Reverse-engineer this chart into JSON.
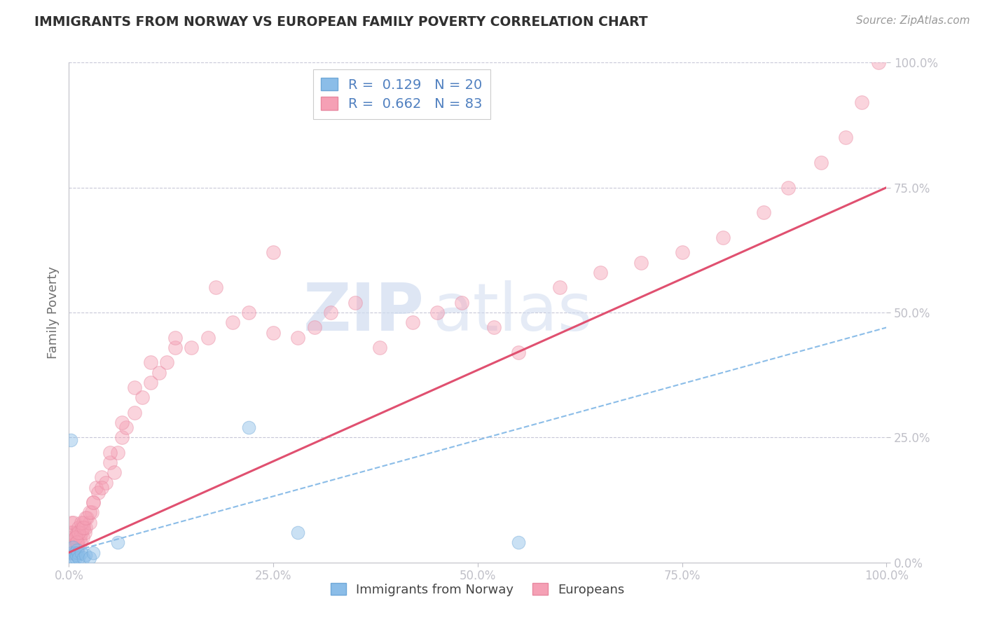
{
  "title": "IMMIGRANTS FROM NORWAY VS EUROPEAN FAMILY POVERTY CORRELATION CHART",
  "source": "Source: ZipAtlas.com",
  "ylabel": "Family Poverty",
  "norway_label": "Immigrants from Norway",
  "european_label": "Europeans",
  "norway_R": 0.129,
  "norway_N": 20,
  "european_R": 0.662,
  "european_N": 83,
  "norway_color": "#8BBDE8",
  "norway_edge_color": "#6FA8D8",
  "european_color": "#F5A0B5",
  "european_edge_color": "#E888A0",
  "norway_trend_color": "#8BBDE8",
  "european_trend_color": "#E05070",
  "background_color": "#FFFFFF",
  "grid_color": "#C8C8D8",
  "title_color": "#303030",
  "axis_label_color": "#707070",
  "tick_label_color": "#5080C0",
  "source_color": "#999999",
  "norway_scatter_x": [
    0.002,
    0.003,
    0.004,
    0.005,
    0.006,
    0.007,
    0.008,
    0.009,
    0.01,
    0.011,
    0.012,
    0.015,
    0.018,
    0.02,
    0.025,
    0.03,
    0.22,
    0.28,
    0.55,
    0.06
  ],
  "norway_scatter_y": [
    0.245,
    0.01,
    0.02,
    0.03,
    0.01,
    0.02,
    0.01,
    0.015,
    0.025,
    0.02,
    0.01,
    0.02,
    0.01,
    0.015,
    0.01,
    0.02,
    0.27,
    0.06,
    0.04,
    0.04
  ],
  "european_scatter_x": [
    0.001,
    0.002,
    0.003,
    0.004,
    0.005,
    0.006,
    0.007,
    0.008,
    0.009,
    0.01,
    0.011,
    0.012,
    0.013,
    0.014,
    0.015,
    0.016,
    0.017,
    0.018,
    0.019,
    0.02,
    0.022,
    0.025,
    0.028,
    0.03,
    0.033,
    0.036,
    0.04,
    0.045,
    0.05,
    0.055,
    0.06,
    0.065,
    0.07,
    0.08,
    0.09,
    0.1,
    0.11,
    0.12,
    0.13,
    0.15,
    0.17,
    0.2,
    0.22,
    0.25,
    0.28,
    0.3,
    0.32,
    0.35,
    0.38,
    0.42,
    0.45,
    0.48,
    0.52,
    0.55,
    0.6,
    0.65,
    0.7,
    0.75,
    0.8,
    0.85,
    0.88,
    0.92,
    0.95,
    0.97,
    0.99,
    0.003,
    0.005,
    0.008,
    0.01,
    0.012,
    0.015,
    0.018,
    0.02,
    0.025,
    0.03,
    0.04,
    0.05,
    0.065,
    0.08,
    0.1,
    0.13,
    0.18,
    0.25
  ],
  "european_scatter_y": [
    0.04,
    0.06,
    0.08,
    0.05,
    0.06,
    0.08,
    0.03,
    0.05,
    0.04,
    0.06,
    0.03,
    0.07,
    0.05,
    0.04,
    0.06,
    0.07,
    0.05,
    0.08,
    0.06,
    0.07,
    0.09,
    0.08,
    0.1,
    0.12,
    0.15,
    0.14,
    0.17,
    0.16,
    0.2,
    0.18,
    0.22,
    0.25,
    0.27,
    0.3,
    0.33,
    0.36,
    0.38,
    0.4,
    0.43,
    0.43,
    0.45,
    0.48,
    0.5,
    0.46,
    0.45,
    0.47,
    0.5,
    0.52,
    0.43,
    0.48,
    0.5,
    0.52,
    0.47,
    0.42,
    0.55,
    0.58,
    0.6,
    0.62,
    0.65,
    0.7,
    0.75,
    0.8,
    0.85,
    0.92,
    1.0,
    0.02,
    0.03,
    0.05,
    0.04,
    0.06,
    0.08,
    0.07,
    0.09,
    0.1,
    0.12,
    0.15,
    0.22,
    0.28,
    0.35,
    0.4,
    0.45,
    0.55,
    0.62
  ],
  "norway_trend_x": [
    0.0,
    1.0
  ],
  "norway_trend_y": [
    0.02,
    0.47
  ],
  "european_trend_x": [
    0.0,
    1.0
  ],
  "european_trend_y": [
    0.02,
    0.75
  ],
  "xlim": [
    0.0,
    1.0
  ],
  "ylim": [
    0.0,
    1.0
  ],
  "yticks": [
    0.0,
    0.25,
    0.5,
    0.75,
    1.0
  ],
  "ytick_labels": [
    "0.0%",
    "25.0%",
    "50.0%",
    "75.0%",
    "100.0%"
  ],
  "xticks": [
    0.0,
    0.25,
    0.5,
    0.75,
    1.0
  ],
  "xtick_labels": [
    "0.0%",
    "25.0%",
    "50.0%",
    "75.0%",
    "100.0%"
  ],
  "watermark_zip": "ZIP",
  "watermark_atlas": "atlas",
  "marker_size_norway": 180,
  "marker_size_european": 200,
  "marker_alpha": 0.45
}
